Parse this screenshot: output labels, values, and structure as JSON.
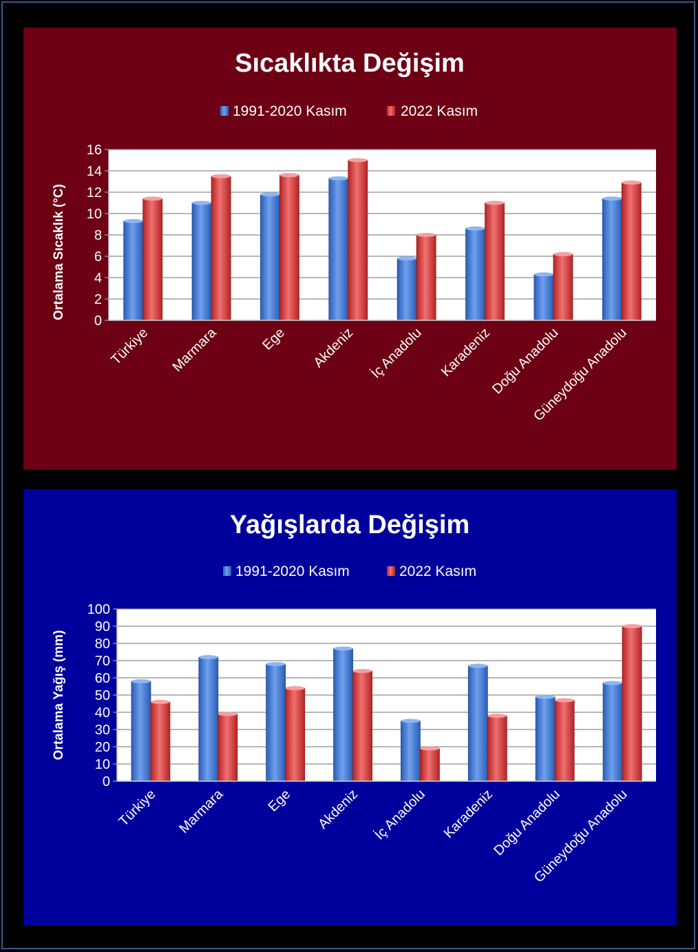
{
  "charts": [
    {
      "id": "temp",
      "background": "#6d0014",
      "title": "Sıcaklıkta Değişim",
      "legend": [
        "1991-2020 Kasım",
        "2022 Kasım"
      ],
      "ylabel": "Ortalama Sıcaklık (°C)"
    },
    {
      "id": "rain",
      "background": "#00009c",
      "title": "Yağışlarda Değişim",
      "legend": [
        "1991-2020 Kasım",
        "2022 Kasım"
      ],
      "ylabel": "Ortalama Yağış (mm)"
    }
  ],
  "colors": {
    "series1": "#3b78d8",
    "series2": "#d83a3a",
    "plot_bg": "#ffffff",
    "grid": "#8c8c8c",
    "text": "#ffffff"
  },
  "chart_data": [
    {
      "type": "bar",
      "title": "Sıcaklıkta Değişim",
      "ylabel": "Ortalama Sıcaklık (°C)",
      "xlabel": "",
      "categories": [
        "Türkiye",
        "Marmara",
        "Ege",
        "Akdeniz",
        "İç Anadolu",
        "Karadeniz",
        "Doğu Anadolu",
        "Güneydoğu Anadolu"
      ],
      "series": [
        {
          "name": "1991-2020 Kasım",
          "values": [
            9.3,
            11.0,
            11.8,
            13.3,
            5.8,
            8.6,
            4.3,
            11.4
          ]
        },
        {
          "name": "2022 Kasım",
          "values": [
            11.4,
            13.5,
            13.6,
            15.0,
            8.0,
            11.0,
            6.2,
            12.9
          ]
        }
      ],
      "ylim": [
        0,
        16
      ],
      "yticks": [
        0,
        2,
        4,
        6,
        8,
        10,
        12,
        14,
        16
      ],
      "grid": true,
      "legend_position": "top"
    },
    {
      "type": "bar",
      "title": "Yağışlarda Değişim",
      "ylabel": "Ortalama Yağış (mm)",
      "xlabel": "",
      "categories": [
        "Türkiye",
        "Marmara",
        "Ege",
        "Akdeniz",
        "İç Anadolu",
        "Karadeniz",
        "Doğu Anadolu",
        "Güneydoğu Anadolu"
      ],
      "series": [
        {
          "name": "1991-2020 Kasım",
          "values": [
            58,
            72,
            68,
            77,
            35,
            67,
            49,
            57
          ]
        },
        {
          "name": "2022 Kasım",
          "values": [
            46,
            39,
            54,
            64,
            19,
            38,
            47,
            90
          ]
        }
      ],
      "ylim": [
        0,
        100
      ],
      "yticks": [
        0,
        10,
        20,
        30,
        40,
        50,
        60,
        70,
        80,
        90,
        100
      ],
      "grid": true,
      "legend_position": "top"
    }
  ]
}
